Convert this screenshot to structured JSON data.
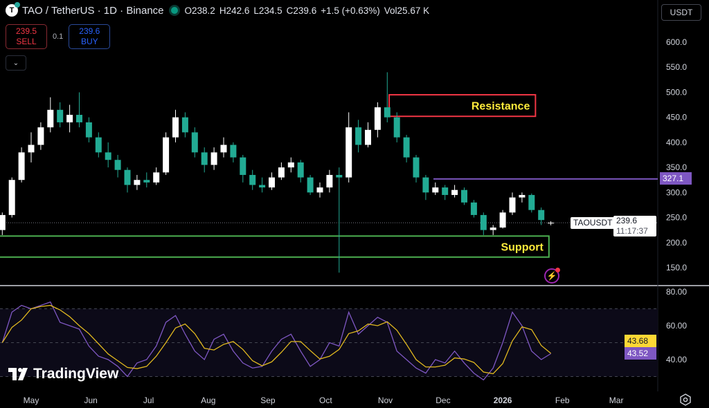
{
  "header": {
    "symbol": "TAO / TetherUS · 1D · Binance",
    "logo_letter": "T",
    "open": "O238.2",
    "high": "H242.6",
    "low": "L234.5",
    "close": "C239.6",
    "change": "+1.5 (+0.63%)",
    "volume": "Vol25.67 K"
  },
  "trade": {
    "sell_price": "239.5",
    "sell_label": "SELL",
    "spread": "0.1",
    "buy_price": "239.6",
    "buy_label": "BUY"
  },
  "currency_selector": "USDT",
  "price_tag": {
    "symbol": "TAOUSDT",
    "price": "239.6",
    "countdown": "11:17:37"
  },
  "level_tag": "327.1",
  "rsi_tags": {
    "ma": "43.68",
    "rsi": "43.52"
  },
  "branding": "TradingView",
  "colors": {
    "up": "#ffffff",
    "down": "#22ab94",
    "resistance": "#f23645",
    "support": "#4caf50",
    "label_text": "#ffeb3b",
    "level": "#7e57c2",
    "rsi": "#7e57c2",
    "rsi_ma": "#e0b81f"
  },
  "chart_data": {
    "type": "candlestick",
    "price_axis": {
      "ticks": [
        "600.0",
        "550.0",
        "500.0",
        "450.0",
        "400.0",
        "350.0",
        "300.0",
        "250.0",
        "200.0",
        "150.0"
      ],
      "range": [
        150,
        600
      ]
    },
    "time_axis": {
      "ticks": [
        {
          "label": "May",
          "date": "2025-05-01"
        },
        {
          "label": "Jun",
          "date": "2025-06-01"
        },
        {
          "label": "Jul",
          "date": "2025-07-01"
        },
        {
          "label": "Aug",
          "date": "2025-08-01"
        },
        {
          "label": "Sep",
          "date": "2025-09-01"
        },
        {
          "label": "Oct",
          "date": "2025-10-01"
        },
        {
          "label": "Nov",
          "date": "2025-11-01"
        },
        {
          "label": "Dec",
          "date": "2025-12-01"
        },
        {
          "label": "2026",
          "date": "2026-01-01"
        },
        {
          "label": "Feb",
          "date": "2026-02-01"
        },
        {
          "label": "Mar",
          "date": "2026-03-01"
        }
      ]
    },
    "candles": [
      [
        "2025-04-16",
        225,
        260,
        215,
        255
      ],
      [
        "2025-04-21",
        255,
        330,
        250,
        325
      ],
      [
        "2025-04-26",
        325,
        390,
        320,
        380
      ],
      [
        "2025-05-01",
        380,
        420,
        360,
        395
      ],
      [
        "2025-05-06",
        395,
        440,
        385,
        430
      ],
      [
        "2025-05-11",
        430,
        490,
        420,
        465
      ],
      [
        "2025-05-16",
        465,
        480,
        430,
        440
      ],
      [
        "2025-05-21",
        440,
        475,
        420,
        455
      ],
      [
        "2025-05-26",
        455,
        500,
        430,
        440
      ],
      [
        "2025-05-31",
        440,
        450,
        400,
        410
      ],
      [
        "2025-06-05",
        410,
        420,
        370,
        380
      ],
      [
        "2025-06-10",
        380,
        400,
        350,
        365
      ],
      [
        "2025-06-15",
        365,
        375,
        330,
        345
      ],
      [
        "2025-06-20",
        345,
        350,
        300,
        315
      ],
      [
        "2025-06-25",
        315,
        335,
        305,
        325
      ],
      [
        "2025-06-30",
        325,
        340,
        310,
        320
      ],
      [
        "2025-07-05",
        320,
        350,
        315,
        340
      ],
      [
        "2025-07-10",
        340,
        420,
        335,
        410
      ],
      [
        "2025-07-15",
        410,
        465,
        400,
        450
      ],
      [
        "2025-07-20",
        450,
        460,
        410,
        420
      ],
      [
        "2025-07-25",
        420,
        430,
        370,
        380
      ],
      [
        "2025-07-30",
        380,
        390,
        340,
        355
      ],
      [
        "2025-08-04",
        355,
        390,
        345,
        380
      ],
      [
        "2025-08-09",
        380,
        410,
        370,
        395
      ],
      [
        "2025-08-14",
        395,
        400,
        360,
        370
      ],
      [
        "2025-08-19",
        370,
        375,
        320,
        335
      ],
      [
        "2025-08-24",
        335,
        345,
        305,
        315
      ],
      [
        "2025-08-29",
        315,
        330,
        300,
        310
      ],
      [
        "2025-09-03",
        310,
        340,
        305,
        330
      ],
      [
        "2025-09-08",
        330,
        360,
        325,
        350
      ],
      [
        "2025-09-13",
        350,
        370,
        340,
        360
      ],
      [
        "2025-09-18",
        360,
        365,
        320,
        330
      ],
      [
        "2025-09-23",
        330,
        335,
        295,
        300
      ],
      [
        "2025-09-28",
        300,
        320,
        290,
        310
      ],
      [
        "2025-10-03",
        310,
        345,
        300,
        335
      ],
      [
        "2025-10-08",
        335,
        350,
        140,
        330
      ],
      [
        "2025-10-13",
        330,
        460,
        320,
        430
      ],
      [
        "2025-10-18",
        430,
        445,
        380,
        395
      ],
      [
        "2025-10-23",
        395,
        440,
        390,
        425
      ],
      [
        "2025-10-28",
        425,
        480,
        410,
        470
      ],
      [
        "2025-11-02",
        470,
        540,
        440,
        450
      ],
      [
        "2025-11-07",
        450,
        460,
        400,
        410
      ],
      [
        "2025-11-12",
        410,
        415,
        360,
        370
      ],
      [
        "2025-11-17",
        370,
        375,
        320,
        330
      ],
      [
        "2025-11-22",
        330,
        335,
        285,
        300
      ],
      [
        "2025-11-27",
        300,
        320,
        295,
        310
      ],
      [
        "2025-12-02",
        310,
        315,
        285,
        295
      ],
      [
        "2025-12-07",
        295,
        315,
        290,
        305
      ],
      [
        "2025-12-12",
        305,
        310,
        275,
        280
      ],
      [
        "2025-12-17",
        280,
        285,
        250,
        255
      ],
      [
        "2025-12-22",
        255,
        260,
        215,
        225
      ],
      [
        "2025-12-27",
        225,
        235,
        215,
        230
      ],
      [
        "2026-01-01",
        230,
        265,
        228,
        260
      ],
      [
        "2026-01-06",
        260,
        300,
        255,
        290
      ],
      [
        "2026-01-11",
        290,
        300,
        280,
        295
      ],
      [
        "2026-01-16",
        295,
        298,
        260,
        265
      ],
      [
        "2026-01-21",
        265,
        270,
        235,
        245
      ],
      [
        "2026-01-26",
        238.2,
        242.6,
        234.5,
        239.6
      ]
    ],
    "last_price": 239.6,
    "zones": [
      {
        "label": "Resistance",
        "from_date": "2025-11-03",
        "to_date": "2026-01-18",
        "low": 452,
        "high": 495
      },
      {
        "label": "Support",
        "from_date": "2025-04-14",
        "to_date": "2026-01-25",
        "low": 171,
        "high": 213
      }
    ],
    "horizontal_level": {
      "value": 327.1,
      "from_date": "2025-11-26"
    },
    "rsi": {
      "axis_ticks": [
        "80.00",
        "60.00",
        "40.00"
      ],
      "range": [
        25,
        83
      ],
      "bands": [
        70,
        50,
        30
      ],
      "values": [
        50,
        68,
        72,
        70,
        72,
        74,
        62,
        60,
        58,
        48,
        42,
        40,
        36,
        30,
        38,
        40,
        48,
        62,
        66,
        55,
        45,
        40,
        52,
        55,
        45,
        38,
        35,
        36,
        45,
        52,
        55,
        45,
        36,
        40,
        50,
        48,
        68,
        55,
        60,
        65,
        62,
        45,
        40,
        35,
        32,
        40,
        38,
        45,
        38,
        32,
        28,
        35,
        50,
        68,
        60,
        45,
        40,
        43.52
      ],
      "ma_last": 43.68
    }
  }
}
